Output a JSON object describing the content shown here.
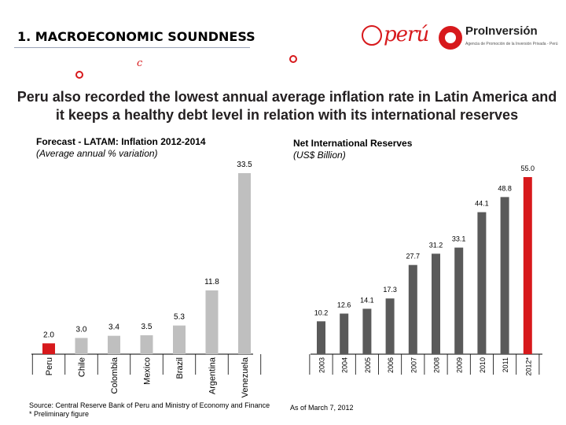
{
  "header": {
    "title": "1. MACROECONOMIC SOUNDNESS",
    "peru_logo": "perú",
    "proinversion_name": "ProInversión",
    "proinversion_tagline": "Agencia de Promoción de la Inversión Privada - Perú"
  },
  "headline": "Peru also recorded the lowest annual average inflation rate in Latin America and it keeps a healthy debt level in relation with its international reserves",
  "inflation": {
    "title": "Forecast - LATAM: Inflation 2012-2014",
    "subtitle": "(Average annual % variation)"
  },
  "reserves": {
    "title": "Net International Reserves",
    "subtitle": "(US$ Billion)"
  },
  "notes": {
    "source": "Source: Central Reserve Bank of Peru and Ministry of Economy and Finance",
    "preliminary": "* Preliminary figure",
    "as_of": "As of March 7, 2012"
  },
  "colors": {
    "highlight": "#d7191c",
    "bar": "#bfbfbf",
    "reserves_bar": "#5a5a5a"
  },
  "chart_data": [
    {
      "type": "bar",
      "title": "Forecast - LATAM: Inflation 2012-2014",
      "subtitle": "(Average annual % variation)",
      "categories": [
        "Peru",
        "Chile",
        "Colombia",
        "Mexico",
        "Brazil",
        "Argentina",
        "Venezuela"
      ],
      "values": [
        2.0,
        3.0,
        3.4,
        3.5,
        5.3,
        11.8,
        33.5
      ],
      "value_labels": [
        "2.0",
        "3.0",
        "3.4",
        "3.5",
        "5.3",
        "11.8",
        "33.5"
      ],
      "highlight": "Peru",
      "ylim": [
        0,
        35
      ]
    },
    {
      "type": "bar",
      "title": "Net International Reserves",
      "subtitle": "(US$ Billion)",
      "categories": [
        "2003",
        "2004",
        "2005",
        "2006",
        "2007",
        "2008",
        "2009",
        "2010",
        "2011",
        "2012*"
      ],
      "values": [
        10.2,
        12.6,
        14.1,
        17.3,
        27.7,
        31.2,
        33.1,
        44.1,
        48.8,
        55.0
      ],
      "value_labels": [
        "10.2",
        "12.6",
        "14.1",
        "17.3",
        "27.7",
        "31.2",
        "33.1",
        "44.1",
        "48.8",
        "55.0"
      ],
      "highlight": "2012*",
      "ylim": [
        0,
        57
      ]
    }
  ]
}
